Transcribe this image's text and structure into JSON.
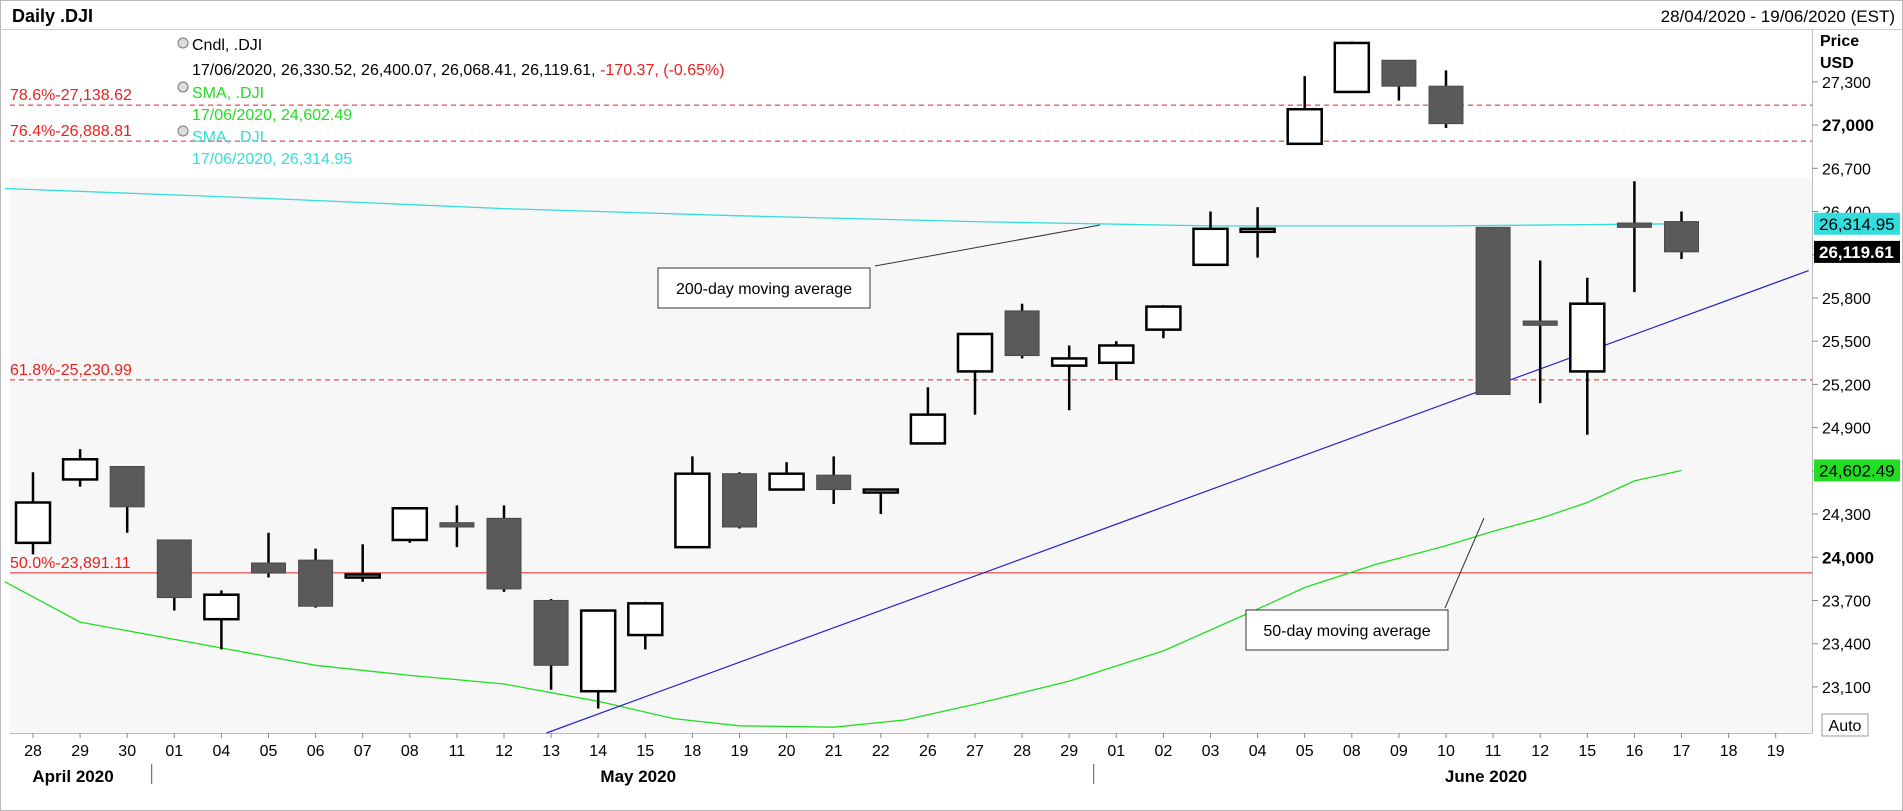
{
  "header": {
    "title": "Daily .DJI",
    "date_range": "28/04/2020 - 19/06/2020 (EST)"
  },
  "axis": {
    "price_label": "Price",
    "currency_label": "USD",
    "auto_label": "Auto"
  },
  "legend": {
    "candle_name": "Cndl, .DJI",
    "candle_values": "17/06/2020, 26,330.52, 26,400.07, 26,068.41, 26,119.61,",
    "candle_change": "-170.37, (-0.65%)",
    "sma50_name": "SMA, .DJI",
    "sma50_values": "17/06/2020, 24,602.49",
    "sma200_name": "SMA, .DJI",
    "sma200_values": "17/06/2020, 26,314.95"
  },
  "annotations": {
    "sma200_callout": "200-day moving average",
    "sma50_callout": "50-day moving average"
  },
  "colors": {
    "up_candle": "#ffffff",
    "down_candle": "#5a5a5a",
    "sma50": "#22dd22",
    "sma200": "#33dddd",
    "trendline": "#2222cc",
    "fib": "#e82020"
  },
  "chart_data": {
    "type": "candlestick",
    "y_range": [
      22780,
      27660
    ],
    "y_ticks": [
      {
        "value": 23100,
        "label": "23,100",
        "major": false
      },
      {
        "value": 23400,
        "label": "23,400",
        "major": false
      },
      {
        "value": 23700,
        "label": "23,700",
        "major": false
      },
      {
        "value": 24000,
        "label": "24,000",
        "major": true
      },
      {
        "value": 24300,
        "label": "24,300",
        "major": false
      },
      {
        "value": 24600,
        "label": "24,600",
        "major": false
      },
      {
        "value": 24900,
        "label": "24,900",
        "major": false
      },
      {
        "value": 25200,
        "label": "25,200",
        "major": false
      },
      {
        "value": 25500,
        "label": "25,500",
        "major": false
      },
      {
        "value": 25800,
        "label": "25,800",
        "major": false
      },
      {
        "value": 26100,
        "label": "26,100",
        "major": false
      },
      {
        "value": 26400,
        "label": "26,400",
        "major": false
      },
      {
        "value": 26700,
        "label": "26,700",
        "major": false
      },
      {
        "value": 27000,
        "label": "27,000",
        "major": true
      },
      {
        "value": 27300,
        "label": "27,300",
        "major": false
      }
    ],
    "x_labels": [
      "28",
      "29",
      "30",
      "01",
      "04",
      "05",
      "06",
      "07",
      "08",
      "11",
      "12",
      "13",
      "14",
      "15",
      "18",
      "19",
      "20",
      "21",
      "22",
      "26",
      "27",
      "28",
      "29",
      "01",
      "02",
      "03",
      "04",
      "05",
      "08",
      "09",
      "10",
      "11",
      "12",
      "15",
      "16",
      "17",
      "18",
      "19"
    ],
    "months": [
      {
        "label": "April 2020",
        "index": 0.85
      },
      {
        "label": "May 2020",
        "index": 12.85
      },
      {
        "label": "June 2020",
        "index": 30.85
      }
    ],
    "month_separators": [
      3,
      23
    ],
    "candles": [
      {
        "o": 24100,
        "h": 24590,
        "l": 24020,
        "c": 24380
      },
      {
        "o": 24540,
        "h": 24750,
        "l": 24490,
        "c": 24680
      },
      {
        "o": 24630,
        "h": 24630,
        "l": 24170,
        "c": 24350
      },
      {
        "o": 24120,
        "h": 24120,
        "l": 23630,
        "c": 23720
      },
      {
        "o": 23570,
        "h": 23770,
        "l": 23360,
        "c": 23740
      },
      {
        "o": 23960,
        "h": 24170,
        "l": 23860,
        "c": 23890
      },
      {
        "o": 23980,
        "h": 24060,
        "l": 23650,
        "c": 23660
      },
      {
        "o": 23860,
        "h": 24090,
        "l": 23830,
        "c": 23880
      },
      {
        "o": 24120,
        "h": 24340,
        "l": 24100,
        "c": 24340
      },
      {
        "o": 24240,
        "h": 24360,
        "l": 24070,
        "c": 24210
      },
      {
        "o": 24270,
        "h": 24360,
        "l": 23760,
        "c": 23780
      },
      {
        "o": 23700,
        "h": 23710,
        "l": 23080,
        "c": 23250
      },
      {
        "o": 23070,
        "h": 23630,
        "l": 22950,
        "c": 23630
      },
      {
        "o": 23460,
        "h": 23690,
        "l": 23360,
        "c": 23680
      },
      {
        "o": 24070,
        "h": 24700,
        "l": 24070,
        "c": 24580
      },
      {
        "o": 24580,
        "h": 24590,
        "l": 24200,
        "c": 24210
      },
      {
        "o": 24470,
        "h": 24660,
        "l": 24470,
        "c": 24580
      },
      {
        "o": 24570,
        "h": 24700,
        "l": 24370,
        "c": 24470
      },
      {
        "o": 24470,
        "h": 24470,
        "l": 24300,
        "c": 24470
      },
      {
        "o": 24790,
        "h": 25180,
        "l": 24790,
        "c": 24990
      },
      {
        "o": 25290,
        "h": 25550,
        "l": 24990,
        "c": 25550
      },
      {
        "o": 25710,
        "h": 25760,
        "l": 25380,
        "c": 25400
      },
      {
        "o": 25330,
        "h": 25470,
        "l": 25020,
        "c": 25380
      },
      {
        "o": 25350,
        "h": 25500,
        "l": 25230,
        "c": 25470
      },
      {
        "o": 25580,
        "h": 25750,
        "l": 25520,
        "c": 25740
      },
      {
        "o": 26030,
        "h": 26400,
        "l": 26030,
        "c": 26280
      },
      {
        "o": 26270,
        "h": 26430,
        "l": 26080,
        "c": 26280
      },
      {
        "o": 26870,
        "h": 27340,
        "l": 26870,
        "c": 27110
      },
      {
        "o": 27230,
        "h": 27580,
        "l": 27230,
        "c": 27570
      },
      {
        "o": 27450,
        "h": 27450,
        "l": 27170,
        "c": 27270
      },
      {
        "o": 27270,
        "h": 27380,
        "l": 26980,
        "c": 27010
      },
      {
        "o": 26290,
        "h": 26290,
        "l": 25130,
        "c": 25130
      },
      {
        "o": 25640,
        "h": 26060,
        "l": 25070,
        "c": 25610
      },
      {
        "o": 25290,
        "h": 25940,
        "l": 24850,
        "c": 25760
      },
      {
        "o": 26320,
        "h": 26610,
        "l": 25840,
        "c": 26290
      },
      {
        "o": 26330,
        "h": 26400,
        "l": 26070,
        "c": 26120
      }
    ],
    "sma50": [
      [
        -0.6,
        23830
      ],
      [
        1,
        23550
      ],
      [
        4,
        23370
      ],
      [
        6,
        23250
      ],
      [
        8,
        23180
      ],
      [
        10,
        23120
      ],
      [
        12,
        23000
      ],
      [
        13.6,
        22880
      ],
      [
        15,
        22830
      ],
      [
        17,
        22820
      ],
      [
        18.5,
        22870
      ],
      [
        20,
        22980
      ],
      [
        22,
        23140
      ],
      [
        24,
        23350
      ],
      [
        26,
        23640
      ],
      [
        27,
        23790
      ],
      [
        28.5,
        23950
      ],
      [
        30,
        24080
      ],
      [
        31,
        24180
      ],
      [
        32,
        24270
      ],
      [
        33,
        24380
      ],
      [
        34,
        24530
      ],
      [
        35,
        24602.49
      ]
    ],
    "sma200": [
      [
        -0.6,
        26560
      ],
      [
        5,
        26490
      ],
      [
        10,
        26420
      ],
      [
        15,
        26370
      ],
      [
        20,
        26330
      ],
      [
        25,
        26300
      ],
      [
        30,
        26300
      ],
      [
        35,
        26314.95
      ]
    ],
    "trendline": {
      "x1": 10.9,
      "y1": 22780,
      "x2": 37.7,
      "y2": 25990
    },
    "fib_levels": [
      {
        "value": 27138.62,
        "label": "78.6%-27,138.62",
        "style": "dashed"
      },
      {
        "value": 26888.81,
        "label": "76.4%-26,888.81",
        "style": "dashed"
      },
      {
        "value": 25230.99,
        "label": "61.8%-25,230.99",
        "style": "dashed"
      },
      {
        "value": 23891.11,
        "label": "50.0%-23,891.11",
        "style": "solid"
      }
    ],
    "price_tags": [
      {
        "value": 26314.95,
        "label": "26,314.95",
        "kind": "sma200"
      },
      {
        "value": 26119.61,
        "label": "26,119.61",
        "kind": "last"
      },
      {
        "value": 24602.49,
        "label": "24,602.49",
        "kind": "sma50"
      }
    ]
  }
}
